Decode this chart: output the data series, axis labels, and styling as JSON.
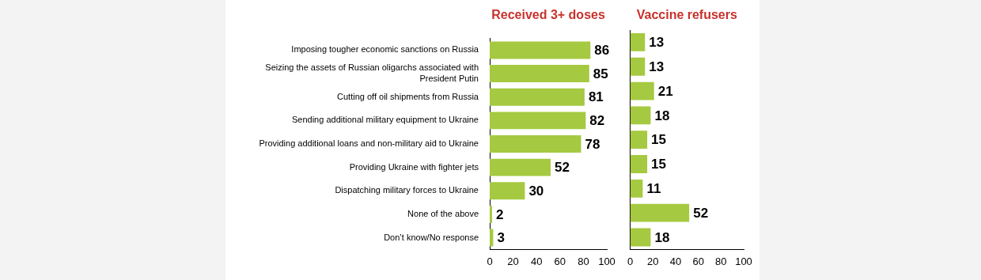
{
  "chart_data": [
    {
      "type": "bar",
      "orientation": "horizontal",
      "title": "Received 3+ doses",
      "categories": [
        "Imposing tougher economic sanctions on Russia",
        "Seizing the assets of Russian oligarchs associated with President Putin",
        "Cutting off oil shipments from Russia",
        "Sending additional military equipment to Ukraine",
        "Providing additional loans and non-military aid to Ukraine",
        "Providing Ukraine with fighter jets",
        "Dispatching military forces to Ukraine",
        "None of the above",
        "Don’t know/No response"
      ],
      "values": [
        86,
        85,
        81,
        82,
        78,
        52,
        30,
        2,
        3
      ],
      "color": "#a5c940",
      "xlim": [
        0,
        100
      ],
      "xticks": [
        0,
        20,
        40,
        60,
        80,
        100
      ],
      "data_labels": true,
      "grid": false,
      "legend": false
    },
    {
      "type": "bar",
      "orientation": "horizontal",
      "title": "Vaccine refusers",
      "categories": [
        null,
        null,
        null,
        null,
        null,
        null,
        null,
        null,
        null
      ],
      "values": [
        13,
        13,
        21,
        18,
        15,
        15,
        11,
        52,
        18
      ],
      "color": "#a5c940",
      "xlim": [
        0,
        100
      ],
      "xticks": [
        0,
        20,
        40,
        60,
        80,
        100
      ],
      "data_labels": true,
      "grid": false,
      "legend": false,
      "tick_labels": "x"
    }
  ]
}
